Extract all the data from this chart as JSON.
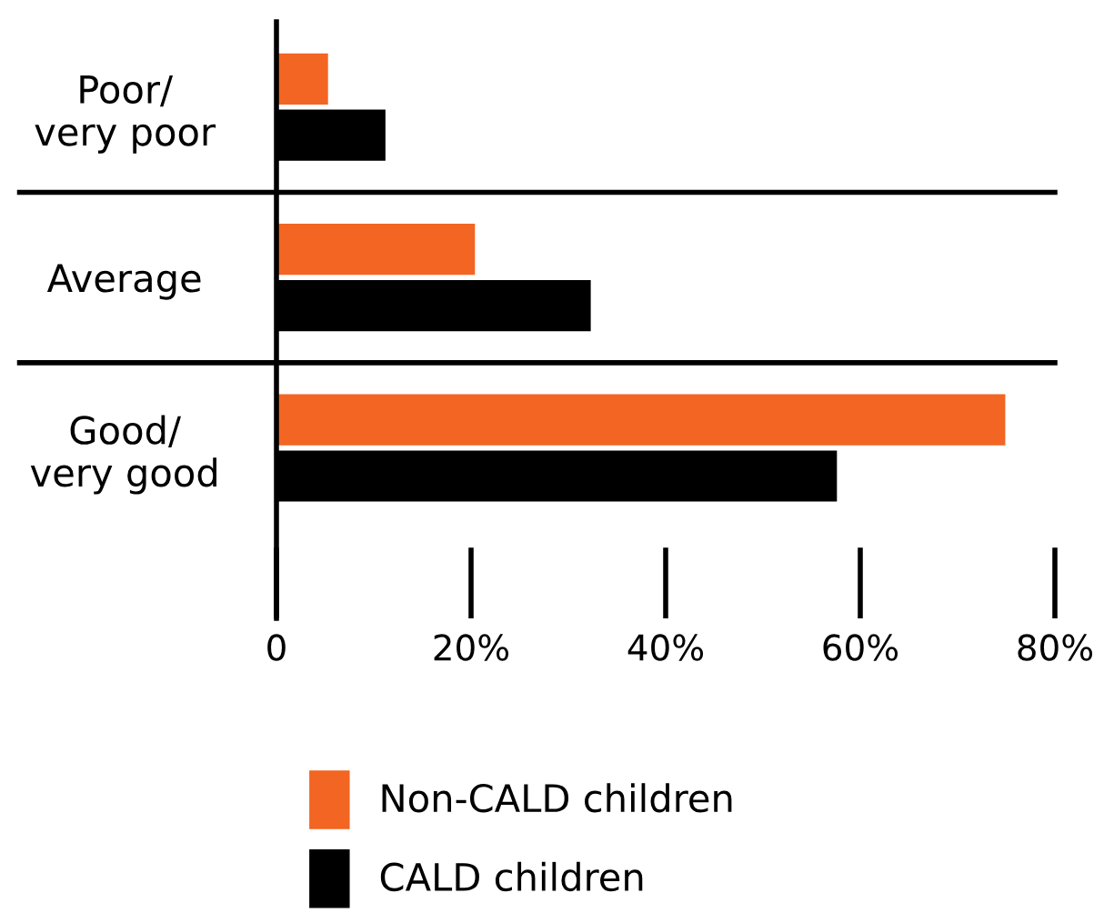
{
  "chart_data": {
    "type": "bar",
    "orientation": "horizontal",
    "categories": [
      "Poor/\nvery poor",
      "Average",
      "Good/\nvery good"
    ],
    "series": [
      {
        "name": "Non-CALD children",
        "color": "#f26522",
        "values": [
          5.3,
          20.4,
          74.9
        ]
      },
      {
        "name": "CALD children",
        "color": "#000000",
        "values": [
          11.2,
          32.3,
          57.6
        ]
      }
    ],
    "xlim": [
      0,
      80
    ],
    "xticks": [
      {
        "value": 0,
        "label": "0"
      },
      {
        "value": 20,
        "label": "20%"
      },
      {
        "value": 40,
        "label": "40%"
      },
      {
        "value": 60,
        "label": "60%"
      },
      {
        "value": 80,
        "label": "80%"
      }
    ],
    "legend": "bottom",
    "grid": false
  }
}
